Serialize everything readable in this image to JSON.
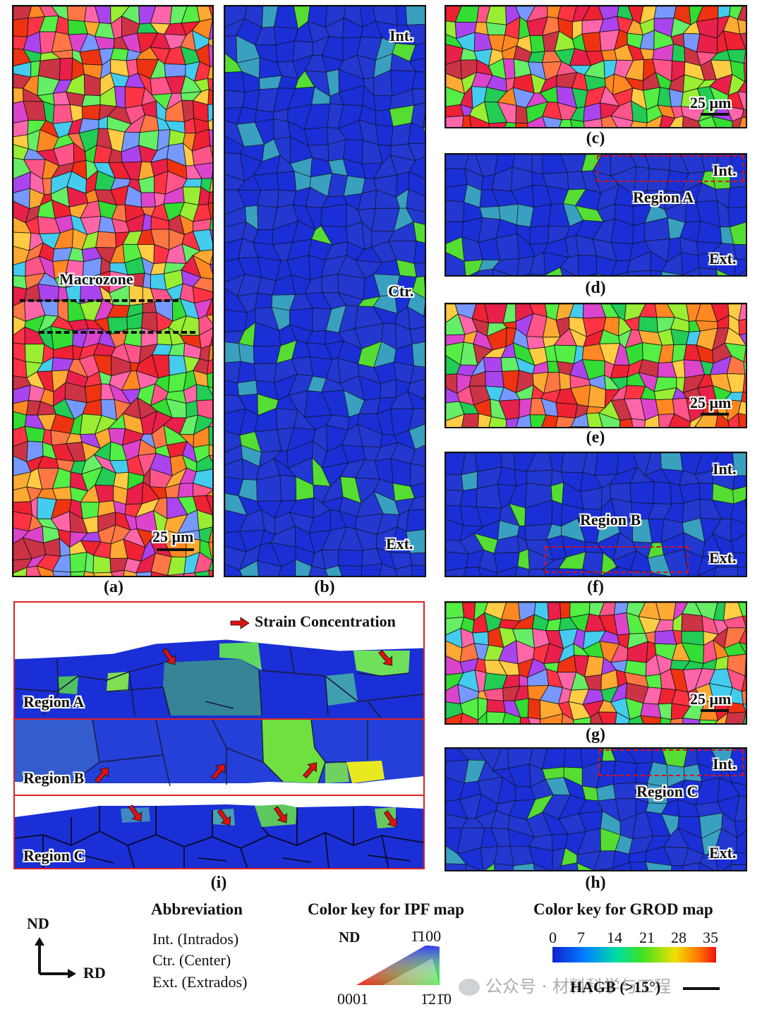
{
  "panels": {
    "a": {
      "label": "(a)",
      "macrozone": "Macrozone",
      "scale": "25 μm"
    },
    "b": {
      "label": "(b)",
      "int": "Int.",
      "ctr": "Ctr.",
      "ext": "Ext."
    },
    "c": {
      "label": "(c)",
      "scale": "25 μm"
    },
    "d": {
      "label": "(d)",
      "int": "Int.",
      "region": "Region A",
      "ext": "Ext."
    },
    "e": {
      "label": "(e)",
      "scale": "25 μm"
    },
    "f": {
      "label": "(f)",
      "int": "Int.",
      "region": "Region B",
      "ext": "Ext."
    },
    "g": {
      "label": "(g)",
      "scale": "25 μm"
    },
    "h": {
      "label": "(h)",
      "int": "Int.",
      "region": "Region C",
      "ext": "Ext."
    },
    "i": {
      "label": "(i)",
      "legend": "Strain Concentration",
      "region_a": "Region A",
      "region_b": "Region B",
      "region_c": "Region C"
    }
  },
  "axes": {
    "nd": "ND",
    "rd": "RD"
  },
  "abbreviation": {
    "title": "Abbreviation",
    "items": [
      "Int. (Intrados)",
      "Ctr. (Center)",
      "Ext. (Extrados)"
    ]
  },
  "ipf_key": {
    "title": "Color key for IPF map",
    "nd": "ND",
    "top": "1̄100",
    "left": "0001",
    "right": "1̄21̄0"
  },
  "grod_key": {
    "title": "Color key for GROD map",
    "ticks": [
      "0",
      "7",
      "14",
      "21",
      "28",
      "35"
    ],
    "hagb": "HAGB (>15°)"
  },
  "watermark": "公众号 · 材料科学与工程",
  "colors": {
    "ipf_red": "#ee2233",
    "ipf_green": "#33dd33",
    "grod_blue": "#1a2fd6",
    "grod_green": "#44dd33",
    "frame_red": "#dd2222"
  }
}
